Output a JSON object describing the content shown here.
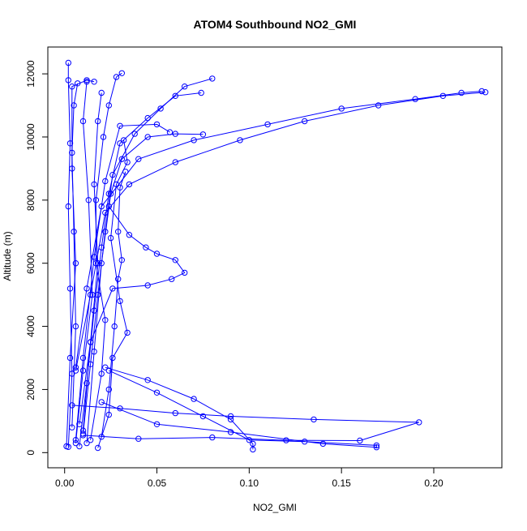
{
  "chart_data": {
    "type": "scatter",
    "title": "ATOM4 Southbound NO2_GMI",
    "xlabel": "NO2_GMI",
    "ylabel": "Altitude (m)",
    "xlim": [
      -0.0091,
      0.2369
    ],
    "ylim": [
      -480,
      12850
    ],
    "xticks": [
      0.0,
      0.05,
      0.1,
      0.15,
      0.2
    ],
    "xtick_labels": [
      "0.00",
      "0.05",
      "0.10",
      "0.15",
      "0.20"
    ],
    "yticks": [
      0,
      2000,
      4000,
      6000,
      8000,
      10000,
      12000
    ],
    "ytick_labels": [
      "0",
      "2000",
      "4000",
      "6000",
      "8000",
      "10000",
      "12000"
    ],
    "grid": false,
    "legend": false,
    "marker": "open-circle",
    "color": "#0000ff",
    "series": [
      {
        "values": [
          [
            0.002,
            180
          ],
          [
            0.004,
            2500
          ],
          [
            0.003,
            5200
          ],
          [
            0.002,
            7800
          ],
          [
            0.003,
            9800
          ],
          [
            0.002,
            11800
          ],
          [
            0.002,
            12350
          ]
        ]
      },
      {
        "values": [
          [
            0.001,
            200
          ],
          [
            0.003,
            3000
          ],
          [
            0.006,
            6000
          ],
          [
            0.004,
            9000
          ],
          [
            0.004,
            11600
          ],
          [
            0.012,
            11800
          ],
          [
            0.016,
            11750
          ]
        ]
      },
      {
        "values": [
          [
            0.006,
            300
          ],
          [
            0.01,
            2600
          ],
          [
            0.015,
            5000
          ],
          [
            0.013,
            8000
          ],
          [
            0.01,
            10500
          ],
          [
            0.012,
            11750
          ]
        ]
      },
      {
        "values": [
          [
            0.004,
            800
          ],
          [
            0.006,
            4000
          ],
          [
            0.005,
            7000
          ],
          [
            0.004,
            9500
          ],
          [
            0.005,
            11000
          ],
          [
            0.007,
            11700
          ]
        ]
      },
      {
        "values": [
          [
            0.01,
            700
          ],
          [
            0.014,
            3500
          ],
          [
            0.018,
            6000
          ],
          [
            0.016,
            8500
          ],
          [
            0.018,
            10500
          ],
          [
            0.02,
            11400
          ]
        ]
      },
      {
        "values": [
          [
            0.014,
            400
          ],
          [
            0.02,
            2500
          ],
          [
            0.022,
            4200
          ],
          [
            0.017,
            6000
          ],
          [
            0.017,
            8000
          ],
          [
            0.021,
            10000
          ],
          [
            0.024,
            11000
          ],
          [
            0.028,
            11900
          ],
          [
            0.031,
            12020
          ]
        ]
      },
      {
        "values": [
          [
            0.02,
            500
          ],
          [
            0.024,
            2000
          ],
          [
            0.027,
            4000
          ],
          [
            0.029,
            5500
          ],
          [
            0.031,
            6100
          ],
          [
            0.029,
            7000
          ],
          [
            0.03,
            8400
          ],
          [
            0.033,
            8900
          ]
        ]
      },
      {
        "values": [
          [
            0.018,
            150
          ],
          [
            0.024,
            1200
          ],
          [
            0.026,
            3000
          ],
          [
            0.034,
            3800
          ],
          [
            0.03,
            4800
          ],
          [
            0.025,
            6800
          ],
          [
            0.028,
            8500
          ],
          [
            0.034,
            9200
          ],
          [
            0.032,
            9900
          ]
        ]
      },
      {
        "values": [
          [
            0.008,
            200
          ],
          [
            0.012,
            2200
          ],
          [
            0.016,
            4500
          ],
          [
            0.02,
            6500
          ],
          [
            0.024,
            8200
          ],
          [
            0.03,
            9800
          ],
          [
            0.045,
            10600
          ],
          [
            0.06,
            11300
          ],
          [
            0.074,
            11400
          ]
        ]
      },
      {
        "values": [
          [
            0.01,
            600
          ],
          [
            0.014,
            2800
          ],
          [
            0.018,
            5000
          ],
          [
            0.022,
            7000
          ],
          [
            0.026,
            8800
          ],
          [
            0.038,
            10100
          ],
          [
            0.052,
            10900
          ],
          [
            0.065,
            11600
          ],
          [
            0.08,
            11850
          ]
        ]
      },
      {
        "values": [
          [
            0.012,
            300
          ],
          [
            0.016,
            3200
          ],
          [
            0.02,
            6000
          ],
          [
            0.025,
            8200
          ],
          [
            0.031,
            9300
          ],
          [
            0.045,
            10000
          ],
          [
            0.06,
            10100
          ],
          [
            0.075,
            10080
          ]
        ]
      },
      {
        "values": [
          [
            0.006,
            400
          ],
          [
            0.01,
            3000
          ],
          [
            0.016,
            6200
          ],
          [
            0.022,
            8600
          ],
          [
            0.03,
            10350
          ],
          [
            0.05,
            10400
          ],
          [
            0.057,
            10150
          ]
        ]
      },
      {
        "values": [
          [
            0.008,
            900
          ],
          [
            0.014,
            3500
          ],
          [
            0.026,
            5200
          ],
          [
            0.045,
            5300
          ],
          [
            0.058,
            5500
          ],
          [
            0.065,
            5700
          ],
          [
            0.06,
            6100
          ],
          [
            0.05,
            6300
          ],
          [
            0.044,
            6500
          ],
          [
            0.035,
            6900
          ],
          [
            0.024,
            7800
          ]
        ]
      },
      {
        "values": [
          [
            0.006,
            2700
          ],
          [
            0.012,
            5200
          ],
          [
            0.02,
            7800
          ],
          [
            0.04,
            9300
          ],
          [
            0.07,
            9900
          ],
          [
            0.11,
            10400
          ],
          [
            0.15,
            10900
          ],
          [
            0.19,
            11200
          ],
          [
            0.215,
            11400
          ],
          [
            0.226,
            11450
          ]
        ]
      },
      {
        "values": [
          [
            0.006,
            2600
          ],
          [
            0.014,
            5000
          ],
          [
            0.022,
            7600
          ],
          [
            0.035,
            8500
          ],
          [
            0.06,
            9200
          ],
          [
            0.095,
            9900
          ],
          [
            0.13,
            10500
          ],
          [
            0.17,
            11000
          ],
          [
            0.205,
            11300
          ],
          [
            0.228,
            11420
          ]
        ]
      },
      {
        "values": [
          [
            0.022,
            2700
          ],
          [
            0.045,
            2300
          ],
          [
            0.07,
            1700
          ],
          [
            0.09,
            1050
          ],
          [
            0.102,
            280
          ],
          [
            0.102,
            100
          ]
        ]
      },
      {
        "values": [
          [
            0.004,
            1500
          ],
          [
            0.03,
            1400
          ],
          [
            0.06,
            1250
          ],
          [
            0.09,
            1150
          ],
          [
            0.135,
            1050
          ],
          [
            0.192,
            960
          ],
          [
            0.16,
            380
          ],
          [
            0.12,
            390
          ],
          [
            0.08,
            480
          ],
          [
            0.04,
            440
          ],
          [
            0.01,
            550
          ]
        ]
      },
      {
        "values": [
          [
            0.024,
            2600
          ],
          [
            0.05,
            1900
          ],
          [
            0.075,
            1150
          ],
          [
            0.1,
            400
          ],
          [
            0.13,
            350
          ],
          [
            0.169,
            230
          ],
          [
            0.169,
            170
          ],
          [
            0.14,
            280
          ],
          [
            0.09,
            650
          ],
          [
            0.05,
            900
          ],
          [
            0.02,
            1600
          ]
        ]
      }
    ]
  }
}
